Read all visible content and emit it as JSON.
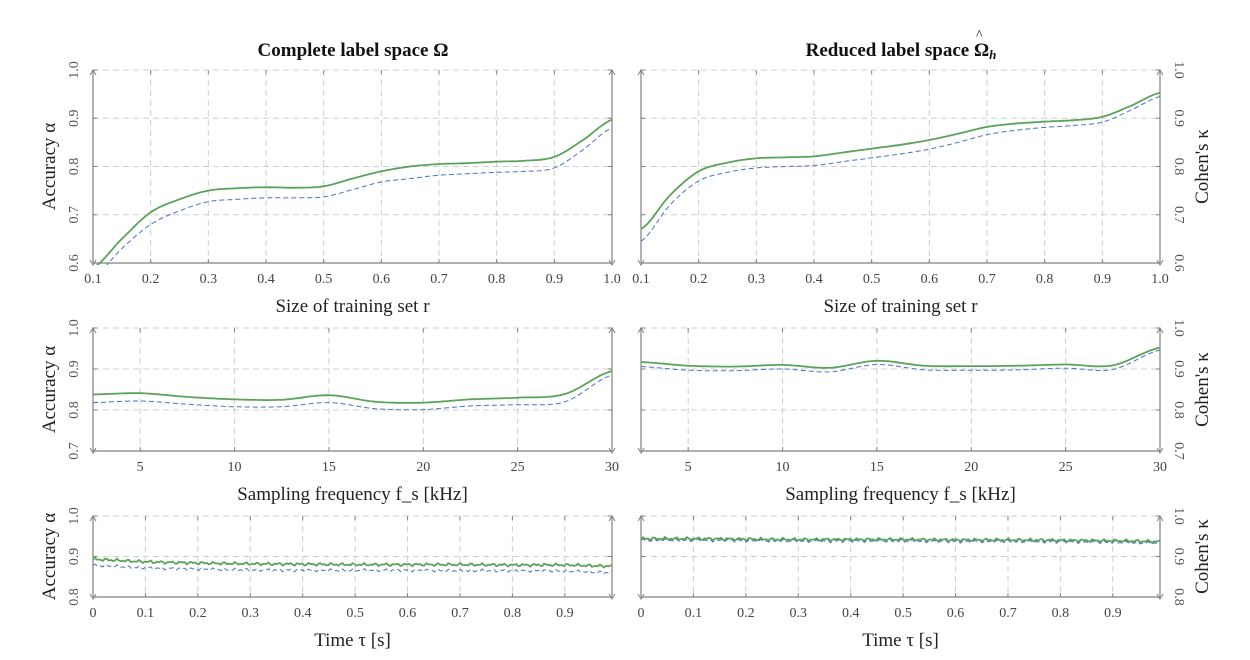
{
  "titles": {
    "left": "Complete label space",
    "left_symbol": "Ω",
    "right": "Reduced label space",
    "right_symbol": "Ω",
    "right_subscript": "h"
  },
  "colors": {
    "accuracy": "#5ba35b",
    "kappa": "#4a72c4",
    "grid": "#cfcfcf",
    "axis": "#808080",
    "text": "#222222"
  },
  "chart_data": [
    {
      "type": "line",
      "panel": "top-left",
      "xlabel": "Size of training set r",
      "ylabel": "Accuracy α",
      "xlim": [
        0.1,
        1.0
      ],
      "ylim": [
        0.6,
        1.0
      ],
      "xticks": [
        "0.1",
        "0.2",
        "0.3",
        "0.4",
        "0.5",
        "0.6",
        "0.7",
        "0.8",
        "0.9",
        "1.0"
      ],
      "yticks": [
        "0.6",
        "0.7",
        "0.8",
        "0.9",
        "1.0"
      ],
      "series": [
        {
          "role": "accuracy",
          "style": "solid",
          "x": [
            0.1,
            0.15,
            0.2,
            0.25,
            0.3,
            0.35,
            0.4,
            0.45,
            0.5,
            0.55,
            0.6,
            0.65,
            0.7,
            0.75,
            0.8,
            0.85,
            0.9,
            0.95,
            1.0
          ],
          "y": [
            0.59,
            0.65,
            0.705,
            0.732,
            0.75,
            0.755,
            0.757,
            0.756,
            0.759,
            0.775,
            0.79,
            0.8,
            0.805,
            0.807,
            0.81,
            0.812,
            0.82,
            0.855,
            0.897
          ]
        },
        {
          "role": "kappa",
          "style": "dashed",
          "x": [
            0.1,
            0.15,
            0.2,
            0.25,
            0.3,
            0.35,
            0.4,
            0.45,
            0.5,
            0.55,
            0.6,
            0.65,
            0.7,
            0.75,
            0.8,
            0.85,
            0.9,
            0.95,
            1.0
          ],
          "y": [
            0.57,
            0.63,
            0.68,
            0.708,
            0.727,
            0.732,
            0.735,
            0.735,
            0.737,
            0.752,
            0.768,
            0.775,
            0.782,
            0.785,
            0.788,
            0.79,
            0.797,
            0.835,
            0.88
          ]
        }
      ]
    },
    {
      "type": "line",
      "panel": "top-right",
      "xlabel": "Size of training set r",
      "ylabel": "Cohen's κ",
      "xlim": [
        0.1,
        1.0
      ],
      "ylim": [
        0.6,
        1.0
      ],
      "xticks": [
        "0.1",
        "0.2",
        "0.3",
        "0.4",
        "0.5",
        "0.6",
        "0.7",
        "0.8",
        "0.9",
        "1.0"
      ],
      "yticks": [
        "0.6",
        "0.7",
        "0.8",
        "0.9",
        "1.0"
      ],
      "series": [
        {
          "role": "accuracy",
          "style": "solid",
          "x": [
            0.1,
            0.15,
            0.2,
            0.25,
            0.3,
            0.35,
            0.4,
            0.45,
            0.5,
            0.55,
            0.6,
            0.65,
            0.7,
            0.75,
            0.8,
            0.85,
            0.9,
            0.95,
            1.0
          ],
          "y": [
            0.67,
            0.74,
            0.79,
            0.808,
            0.817,
            0.819,
            0.821,
            0.829,
            0.837,
            0.845,
            0.855,
            0.868,
            0.882,
            0.889,
            0.893,
            0.896,
            0.903,
            0.926,
            0.953
          ]
        },
        {
          "role": "kappa",
          "style": "dashed",
          "x": [
            0.1,
            0.15,
            0.2,
            0.25,
            0.3,
            0.35,
            0.4,
            0.45,
            0.5,
            0.55,
            0.6,
            0.65,
            0.7,
            0.75,
            0.8,
            0.85,
            0.9,
            0.95,
            1.0
          ],
          "y": [
            0.645,
            0.72,
            0.77,
            0.788,
            0.797,
            0.8,
            0.802,
            0.81,
            0.818,
            0.826,
            0.836,
            0.85,
            0.866,
            0.875,
            0.881,
            0.885,
            0.892,
            0.917,
            0.945
          ]
        }
      ]
    },
    {
      "type": "line",
      "panel": "middle-left",
      "xlabel": "Sampling frequency f_s [kHz]",
      "ylabel": "Accuracy α",
      "xlim": [
        2.5,
        30
      ],
      "ylim": [
        0.7,
        1.0
      ],
      "xticks": [
        "5",
        "10",
        "15",
        "20",
        "25",
        "30"
      ],
      "yticks": [
        "0.7",
        "0.8",
        "0.9",
        "1.0"
      ],
      "series": [
        {
          "role": "accuracy",
          "style": "solid",
          "x": [
            2.5,
            5,
            7.5,
            10,
            12.5,
            15,
            17.5,
            20,
            22.5,
            25,
            27.5,
            30
          ],
          "y": [
            0.838,
            0.841,
            0.832,
            0.826,
            0.825,
            0.836,
            0.82,
            0.818,
            0.826,
            0.83,
            0.839,
            0.895
          ]
        },
        {
          "role": "kappa",
          "style": "dashed",
          "x": [
            2.5,
            5,
            7.5,
            10,
            12.5,
            15,
            17.5,
            20,
            22.5,
            25,
            27.5,
            30
          ],
          "y": [
            0.818,
            0.822,
            0.814,
            0.808,
            0.808,
            0.818,
            0.803,
            0.801,
            0.81,
            0.813,
            0.82,
            0.885
          ]
        }
      ]
    },
    {
      "type": "line",
      "panel": "middle-right",
      "xlabel": "Sampling frequency f_s [kHz]",
      "ylabel": "Cohen's κ",
      "xlim": [
        2.5,
        30
      ],
      "ylim": [
        0.7,
        1.0
      ],
      "xticks": [
        "5",
        "10",
        "15",
        "20",
        "25",
        "30"
      ],
      "yticks": [
        "0.7",
        "0.8",
        "0.9",
        "1.0"
      ],
      "series": [
        {
          "role": "accuracy",
          "style": "solid",
          "x": [
            2.5,
            5,
            7.5,
            10,
            12.5,
            15,
            17.5,
            20,
            22.5,
            25,
            27.5,
            30
          ],
          "y": [
            0.917,
            0.908,
            0.906,
            0.91,
            0.903,
            0.92,
            0.908,
            0.907,
            0.908,
            0.911,
            0.909,
            0.952
          ]
        },
        {
          "role": "kappa",
          "style": "dashed",
          "x": [
            2.5,
            5,
            7.5,
            10,
            12.5,
            15,
            17.5,
            20,
            22.5,
            25,
            27.5,
            30
          ],
          "y": [
            0.906,
            0.897,
            0.896,
            0.9,
            0.893,
            0.911,
            0.898,
            0.897,
            0.898,
            0.902,
            0.899,
            0.946
          ]
        }
      ]
    },
    {
      "type": "line",
      "panel": "bottom-left",
      "xlabel": "Time τ [s]",
      "ylabel": "Accuracy α",
      "xlim": [
        0,
        0.99
      ],
      "ylim": [
        0.8,
        1.0
      ],
      "xticks": [
        "0",
        "0.1",
        "0.2",
        "0.3",
        "0.4",
        "0.5",
        "0.6",
        "0.7",
        "0.8",
        "0.9"
      ],
      "yticks": [
        "0.8",
        "0.9",
        "1.0"
      ],
      "series": [
        {
          "role": "accuracy",
          "style": "solid",
          "x": [
            0,
            0.1,
            0.2,
            0.3,
            0.4,
            0.5,
            0.6,
            0.7,
            0.8,
            0.9,
            0.99
          ],
          "y": [
            0.893,
            0.887,
            0.884,
            0.882,
            0.881,
            0.88,
            0.88,
            0.88,
            0.879,
            0.879,
            0.876
          ]
        },
        {
          "role": "kappa",
          "style": "dashed",
          "x": [
            0,
            0.1,
            0.2,
            0.3,
            0.4,
            0.5,
            0.6,
            0.7,
            0.8,
            0.9,
            0.99
          ],
          "y": [
            0.878,
            0.872,
            0.869,
            0.867,
            0.866,
            0.866,
            0.866,
            0.865,
            0.865,
            0.864,
            0.86
          ]
        }
      ]
    },
    {
      "type": "line",
      "panel": "bottom-right",
      "xlabel": "Time τ [s]",
      "ylabel": "Cohen's κ",
      "xlim": [
        0,
        0.99
      ],
      "ylim": [
        0.8,
        1.0
      ],
      "xticks": [
        "0",
        "0.1",
        "0.2",
        "0.3",
        "0.4",
        "0.5",
        "0.6",
        "0.7",
        "0.8",
        "0.9"
      ],
      "yticks": [
        "0.8",
        "0.9",
        "1.0"
      ],
      "series": [
        {
          "role": "accuracy",
          "style": "solid",
          "x": [
            0,
            0.1,
            0.2,
            0.3,
            0.4,
            0.5,
            0.6,
            0.7,
            0.8,
            0.9,
            0.99
          ],
          "y": [
            0.944,
            0.944,
            0.943,
            0.942,
            0.942,
            0.942,
            0.941,
            0.941,
            0.94,
            0.939,
            0.937
          ]
        },
        {
          "role": "kappa",
          "style": "dashed",
          "x": [
            0,
            0.1,
            0.2,
            0.3,
            0.4,
            0.5,
            0.6,
            0.7,
            0.8,
            0.9,
            0.99
          ],
          "y": [
            0.94,
            0.94,
            0.939,
            0.938,
            0.938,
            0.938,
            0.937,
            0.937,
            0.936,
            0.935,
            0.933
          ]
        }
      ]
    }
  ]
}
